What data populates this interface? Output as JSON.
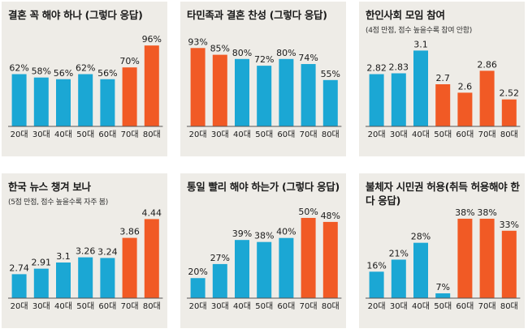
{
  "colors": {
    "blue": "#1ba7d4",
    "orange": "#f15a25",
    "panel": "#eeece7",
    "axis": "#555555"
  },
  "chart_data": [
    {
      "type": "bar",
      "title": "결혼 꼭 해야 하나 (그렇다 응답)",
      "subtitle": "",
      "categories": [
        "20대",
        "30대",
        "40대",
        "50대",
        "60대",
        "70대",
        "80대"
      ],
      "values": [
        62,
        58,
        56,
        62,
        56,
        70,
        96
      ],
      "labels": [
        "62%",
        "58%",
        "56%",
        "62%",
        "56%",
        "70%",
        "96%"
      ],
      "highlight": [
        false,
        false,
        false,
        false,
        false,
        true,
        true
      ],
      "ylim": [
        0,
        100
      ]
    },
    {
      "type": "bar",
      "title": "타민족과 결혼 찬성 (그렇다 응답)",
      "subtitle": "",
      "categories": [
        "20대",
        "30대",
        "40대",
        "50대",
        "60대",
        "70대",
        "80대"
      ],
      "values": [
        93,
        85,
        80,
        72,
        80,
        74,
        55
      ],
      "labels": [
        "93%",
        "85%",
        "80%",
        "72%",
        "80%",
        "74%",
        "55%"
      ],
      "highlight": [
        true,
        true,
        false,
        false,
        false,
        false,
        false
      ],
      "ylim": [
        0,
        100
      ]
    },
    {
      "type": "bar",
      "title": "한인사회 모임 참여",
      "subtitle": "(4점 만점, 점수 높을수록 참여 안함)",
      "categories": [
        "20대",
        "30대",
        "40대",
        "50대",
        "60대",
        "70대",
        "80대"
      ],
      "values": [
        2.82,
        2.83,
        3.1,
        2.7,
        2.6,
        2.86,
        2.52
      ],
      "labels": [
        "2.82",
        "2.83",
        "3.1",
        "2.7",
        "2.6",
        "2.86",
        "2.52"
      ],
      "highlight": [
        false,
        false,
        false,
        true,
        true,
        true,
        true
      ],
      "ylim": [
        2.2,
        3.2
      ]
    },
    {
      "type": "bar",
      "title": "한국 뉴스 챙겨 보나",
      "subtitle": "(5점 만점, 점수 높을수록 자주 봄)",
      "categories": [
        "20대",
        "30대",
        "40대",
        "50대",
        "60대",
        "70대",
        "80대"
      ],
      "values": [
        2.74,
        2.91,
        3.1,
        3.26,
        3.24,
        3.86,
        4.44
      ],
      "labels": [
        "2.74",
        "2.91",
        "3.1",
        "3.26",
        "3.24",
        "3.86",
        "4.44"
      ],
      "highlight": [
        false,
        false,
        false,
        false,
        false,
        true,
        true
      ],
      "ylim": [
        2.0,
        4.6
      ]
    },
    {
      "type": "bar",
      "title": "통일 빨리 해야 하는가 (그렇다 응답)",
      "subtitle": "",
      "categories": [
        "20대",
        "30대",
        "40대",
        "50대",
        "60대",
        "70대",
        "80대"
      ],
      "values": [
        20,
        27,
        39,
        38,
        40,
        50,
        48
      ],
      "labels": [
        "20%",
        "27%",
        "39%",
        "38%",
        "40%",
        "50%",
        "48%"
      ],
      "highlight": [
        false,
        false,
        false,
        false,
        false,
        true,
        true
      ],
      "ylim": [
        10,
        52
      ]
    },
    {
      "type": "bar",
      "title": "불체자 시민권 허용(취득 허용해야 한다 응답)",
      "subtitle": "",
      "categories": [
        "20대",
        "30대",
        "40대",
        "50대",
        "60대",
        "70대",
        "80대"
      ],
      "values": [
        16,
        21,
        28,
        7,
        38,
        38,
        33
      ],
      "labels": [
        "16%",
        "21%",
        "28%",
        "7%",
        "38%",
        "38%",
        "33%"
      ],
      "highlight": [
        false,
        false,
        false,
        false,
        true,
        true,
        true
      ],
      "ylim": [
        5,
        40
      ]
    }
  ]
}
